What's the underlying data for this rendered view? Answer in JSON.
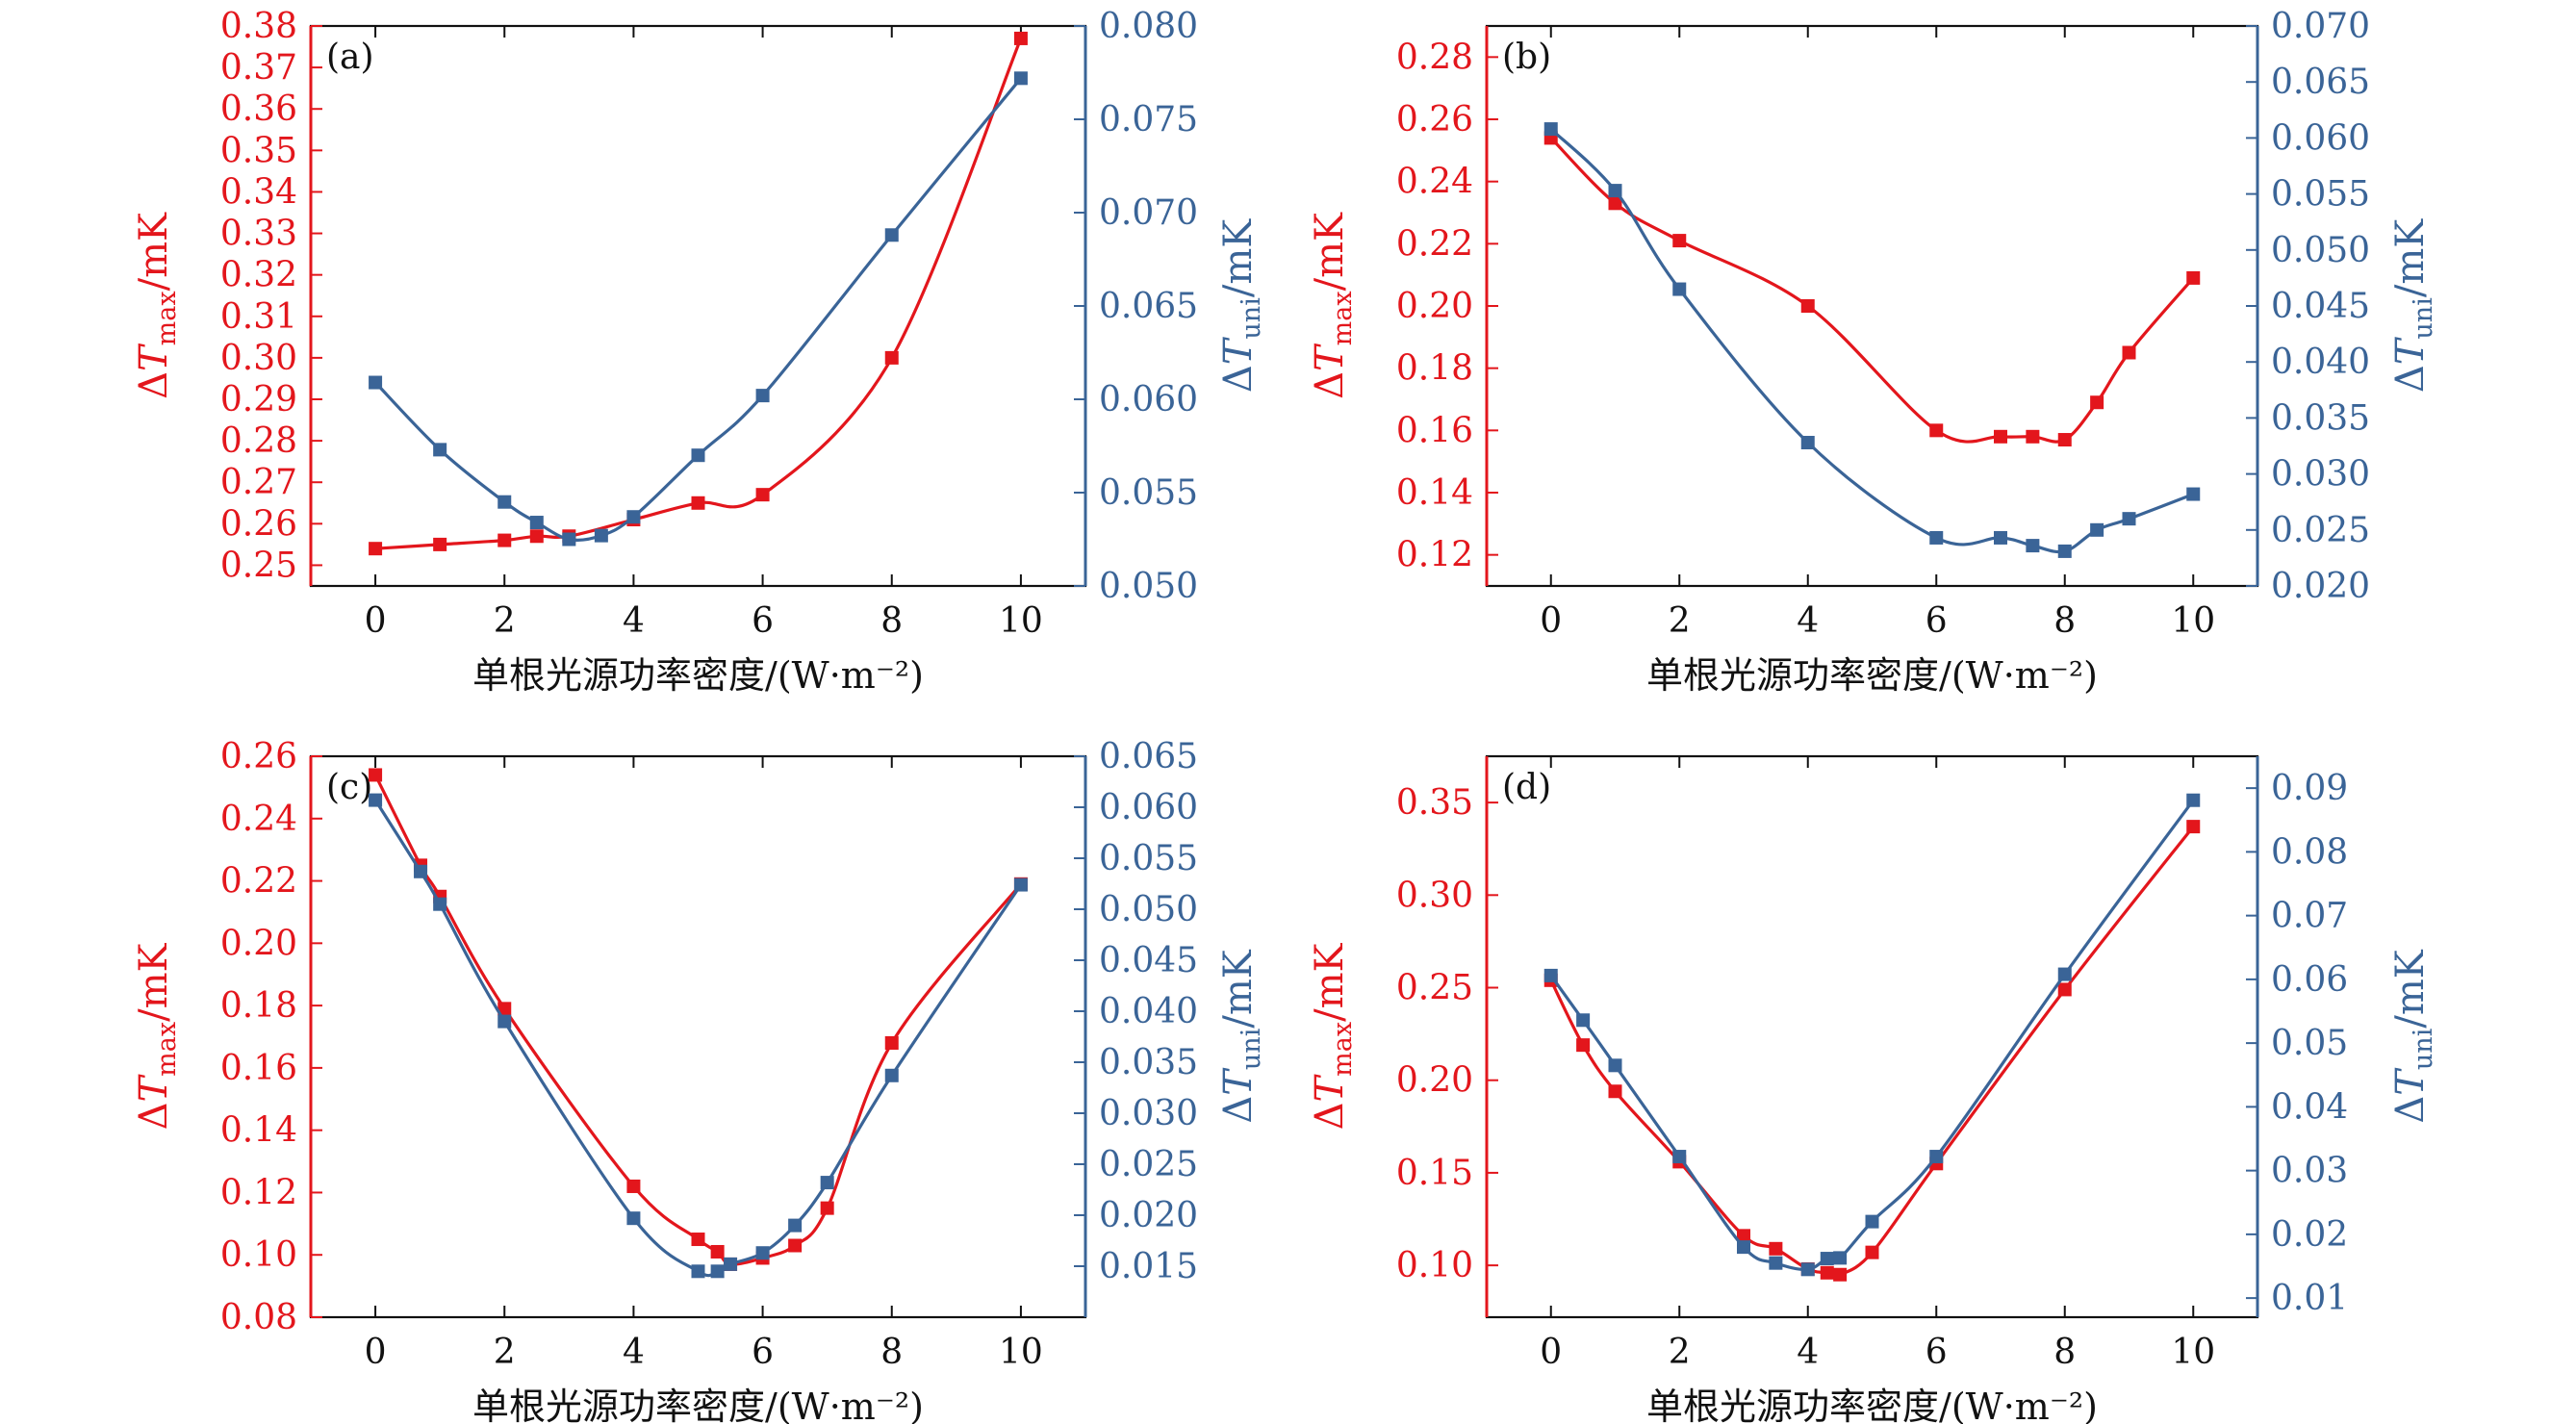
{
  "colors": {
    "max": "#e3161c",
    "uni": "#3a6497",
    "axis": "#111111"
  },
  "chart_data": [
    {
      "type": "line",
      "panel_label": "(a)",
      "xlabel": "单根光源功率密度/(W·m⁻²)",
      "ylabel_left": {
        "prefix": "Δ",
        "var": "T",
        "sub": "max",
        "unit": "/mK"
      },
      "ylabel_right": {
        "prefix": "Δ",
        "var": "T",
        "sub": "uni",
        "unit": "/mK"
      },
      "xlim": [
        -1,
        11
      ],
      "xticks": [
        0,
        2,
        4,
        6,
        8,
        10
      ],
      "ylim_left": [
        0.245,
        0.38
      ],
      "yticks_left": [
        0.25,
        0.26,
        0.27,
        0.28,
        0.29,
        0.3,
        0.31,
        0.32,
        0.33,
        0.34,
        0.35,
        0.36,
        0.37,
        0.38
      ],
      "ytick_decimals_left": 2,
      "ylim_right": [
        0.05,
        0.08
      ],
      "yticks_right": [
        0.05,
        0.055,
        0.06,
        0.065,
        0.07,
        0.075,
        0.08
      ],
      "ytick_decimals_right": 3,
      "series": [
        {
          "name": "ΔTmax",
          "axis": "left",
          "color": "#e3161c",
          "x": [
            0,
            1,
            2,
            2.5,
            3,
            4,
            5,
            6,
            8,
            10
          ],
          "y": [
            0.254,
            0.255,
            0.256,
            0.257,
            0.257,
            0.261,
            0.265,
            0.267,
            0.3,
            0.377
          ]
        },
        {
          "name": "ΔTuni",
          "axis": "right",
          "color": "#3a6497",
          "x": [
            0,
            1,
            2,
            2.5,
            3,
            3.5,
            4,
            5,
            6,
            8,
            10
          ],
          "y": [
            0.0609,
            0.0573,
            0.0545,
            0.0534,
            0.0525,
            0.0527,
            0.0537,
            0.057,
            0.0602,
            0.0688,
            0.0772
          ]
        }
      ]
    },
    {
      "type": "line",
      "panel_label": "(b)",
      "xlabel": "单根光源功率密度/(W·m⁻²)",
      "ylabel_left": {
        "prefix": "Δ",
        "var": "T",
        "sub": "max",
        "unit": "/mK"
      },
      "ylabel_right": {
        "prefix": "Δ",
        "var": "T",
        "sub": "uni",
        "unit": "/mK"
      },
      "xlim": [
        -1,
        11
      ],
      "xticks": [
        0,
        2,
        4,
        6,
        8,
        10
      ],
      "ylim_left": [
        0.11,
        0.29
      ],
      "yticks_left": [
        0.12,
        0.14,
        0.16,
        0.18,
        0.2,
        0.22,
        0.24,
        0.26,
        0.28
      ],
      "ytick_decimals_left": 2,
      "ylim_right": [
        0.02,
        0.07
      ],
      "yticks_right": [
        0.02,
        0.025,
        0.03,
        0.035,
        0.04,
        0.045,
        0.05,
        0.055,
        0.06,
        0.065,
        0.07
      ],
      "ytick_decimals_right": 3,
      "series": [
        {
          "name": "ΔTmax",
          "axis": "left",
          "color": "#e3161c",
          "x": [
            0,
            1,
            2,
            4,
            6,
            7,
            7.5,
            8,
            8.5,
            9,
            10
          ],
          "y": [
            0.254,
            0.233,
            0.221,
            0.2,
            0.16,
            0.158,
            0.158,
            0.157,
            0.169,
            0.185,
            0.209
          ]
        },
        {
          "name": "ΔTuni",
          "axis": "right",
          "color": "#3a6497",
          "x": [
            0,
            1,
            2,
            4,
            6,
            7,
            7.5,
            8,
            8.5,
            9,
            10
          ],
          "y": [
            0.0608,
            0.0553,
            0.0465,
            0.0328,
            0.0243,
            0.0243,
            0.0236,
            0.0231,
            0.025,
            0.026,
            0.0282
          ]
        }
      ]
    },
    {
      "type": "line",
      "panel_label": "(c)",
      "xlabel": "单根光源功率密度/(W·m⁻²)",
      "ylabel_left": {
        "prefix": "Δ",
        "var": "T",
        "sub": "max",
        "unit": "/mK"
      },
      "ylabel_right": {
        "prefix": "Δ",
        "var": "T",
        "sub": "uni",
        "unit": "/mK"
      },
      "xlim": [
        -1,
        11
      ],
      "xticks": [
        0,
        2,
        4,
        6,
        8,
        10
      ],
      "ylim_left": [
        0.08,
        0.26
      ],
      "yticks_left": [
        0.08,
        0.1,
        0.12,
        0.14,
        0.16,
        0.18,
        0.2,
        0.22,
        0.24,
        0.26
      ],
      "ytick_decimals_left": 2,
      "ylim_right": [
        0.01,
        0.065
      ],
      "yticks_right": [
        0.015,
        0.02,
        0.025,
        0.03,
        0.035,
        0.04,
        0.045,
        0.05,
        0.055,
        0.06,
        0.065
      ],
      "ytick_decimals_right": 3,
      "series": [
        {
          "name": "ΔTmax",
          "axis": "left",
          "color": "#e3161c",
          "x": [
            0,
            0.7,
            1,
            2,
            4,
            5,
            5.3,
            5.5,
            6,
            6.5,
            7,
            8,
            10
          ],
          "y": [
            0.254,
            0.225,
            0.215,
            0.179,
            0.122,
            0.105,
            0.101,
            0.097,
            0.099,
            0.103,
            0.115,
            0.168,
            0.219
          ]
        },
        {
          "name": "ΔTuni",
          "axis": "right",
          "color": "#3a6497",
          "x": [
            0,
            0.7,
            1,
            2,
            4,
            5,
            5.3,
            5.5,
            6,
            6.5,
            7,
            8,
            10
          ],
          "y": [
            0.0607,
            0.0537,
            0.0505,
            0.039,
            0.0197,
            0.0145,
            0.0145,
            0.0152,
            0.0163,
            0.019,
            0.0232,
            0.0337,
            0.0524
          ]
        }
      ]
    },
    {
      "type": "line",
      "panel_label": "(d)",
      "xlabel": "单根光源功率密度/(W·m⁻²)",
      "ylabel_left": {
        "prefix": "Δ",
        "var": "T",
        "sub": "max",
        "unit": "/mK"
      },
      "ylabel_right": {
        "prefix": "Δ",
        "var": "T",
        "sub": "uni",
        "unit": "/mK"
      },
      "xlim": [
        -1,
        11
      ],
      "xticks": [
        0,
        2,
        4,
        6,
        8,
        10
      ],
      "ylim_left": [
        0.072,
        0.375
      ],
      "yticks_left": [
        0.1,
        0.15,
        0.2,
        0.25,
        0.3,
        0.35
      ],
      "ytick_decimals_left": 2,
      "ylim_right": [
        0.007,
        0.095
      ],
      "yticks_right": [
        0.01,
        0.02,
        0.03,
        0.04,
        0.05,
        0.06,
        0.07,
        0.08,
        0.09
      ],
      "ytick_decimals_right": 2,
      "series": [
        {
          "name": "ΔTmax",
          "axis": "left",
          "color": "#e3161c",
          "x": [
            0,
            0.5,
            1,
            2,
            3,
            3.5,
            4,
            4.3,
            4.5,
            5,
            6,
            8,
            10
          ],
          "y": [
            0.254,
            0.219,
            0.194,
            0.156,
            0.116,
            0.109,
            0.098,
            0.096,
            0.095,
            0.107,
            0.155,
            0.249,
            0.337
          ]
        },
        {
          "name": "ΔTuni",
          "axis": "right",
          "color": "#3a6497",
          "x": [
            0,
            0.5,
            1,
            2,
            3,
            3.5,
            4,
            4.3,
            4.5,
            5,
            6,
            8,
            10
          ],
          "y": [
            0.0606,
            0.0536,
            0.0465,
            0.0322,
            0.018,
            0.0155,
            0.0145,
            0.0162,
            0.0163,
            0.022,
            0.0322,
            0.0608,
            0.0881
          ]
        }
      ]
    }
  ]
}
